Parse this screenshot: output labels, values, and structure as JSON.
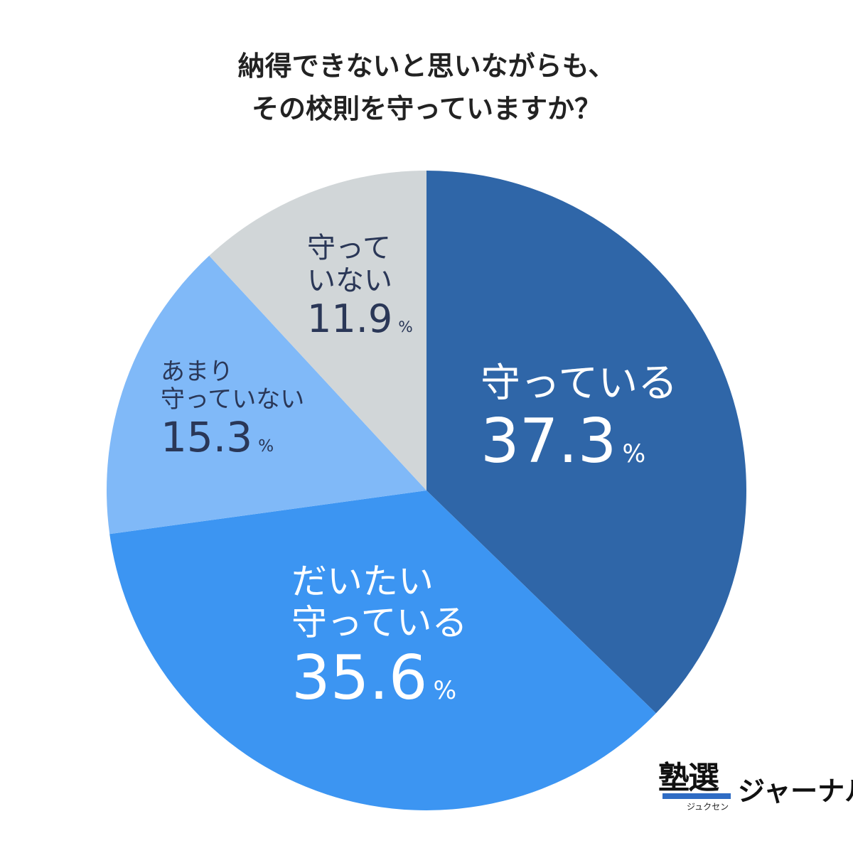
{
  "chart_data": {
    "type": "pie",
    "title_lines": [
      "納得できないと思いながらも、",
      "その校則を守っていますか？"
    ],
    "start_angle": "12 o'clock",
    "direction": "clockwise",
    "unit": "%",
    "slices": [
      {
        "label_lines": [
          "守っている"
        ],
        "value": 37.3,
        "value_text": "37.3",
        "color": "#2f66a8"
      },
      {
        "label_lines": [
          "だいたい",
          "守っている"
        ],
        "value": 35.6,
        "value_text": "35.6",
        "color": "#3c95f2"
      },
      {
        "label_lines": [
          "あまり",
          "守っていない"
        ],
        "value": 15.3,
        "value_text": "15.3",
        "color": "#80b9f8"
      },
      {
        "label_lines": [
          "守って",
          "いない"
        ],
        "value": 11.9,
        "value_text": "11.9",
        "color": "#d1d6d8"
      }
    ]
  },
  "logo": {
    "main": "塾選",
    "sub": "ジュクセン",
    "suffix": "ジャーナル"
  }
}
